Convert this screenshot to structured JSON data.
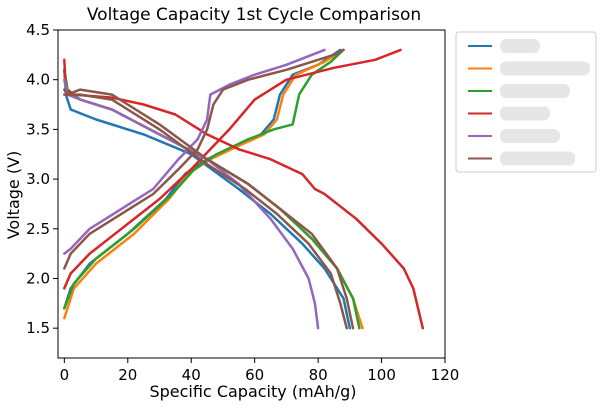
{
  "chart_data": {
    "type": "line",
    "title": "Voltage Capacity 1st Cycle Comparison",
    "xlabel": "Specific Capacity (mAh/g)",
    "ylabel": "Voltage (V)",
    "xlim": [
      -2,
      120
    ],
    "ylim": [
      1.2,
      4.5
    ],
    "xticks": [
      "0",
      "20",
      "40",
      "60",
      "80",
      "100",
      "120"
    ],
    "yticks": [
      "1.5",
      "2.0",
      "2.5",
      "3.0",
      "3.5",
      "4.0",
      "4.5"
    ],
    "grid": false,
    "legend_position": "outside-right",
    "series": [
      {
        "color": "#1f77b4",
        "charge": [
          [
            0,
            1.7
          ],
          [
            2,
            1.9
          ],
          [
            8,
            2.15
          ],
          [
            20,
            2.45
          ],
          [
            32,
            2.8
          ],
          [
            38,
            3.05
          ],
          [
            45,
            3.2
          ],
          [
            55,
            3.35
          ],
          [
            62,
            3.45
          ],
          [
            66,
            3.6
          ],
          [
            68,
            3.85
          ],
          [
            72,
            4.05
          ],
          [
            80,
            4.15
          ],
          [
            87,
            4.3
          ]
        ],
        "discharge": [
          [
            0,
            4.1
          ],
          [
            0.5,
            3.85
          ],
          [
            2,
            3.7
          ],
          [
            10,
            3.6
          ],
          [
            25,
            3.45
          ],
          [
            40,
            3.25
          ],
          [
            55,
            2.9
          ],
          [
            65,
            2.65
          ],
          [
            75,
            2.35
          ],
          [
            82,
            2.1
          ],
          [
            88,
            1.8
          ],
          [
            90,
            1.5
          ]
        ]
      },
      {
        "color": "#ff7f0e",
        "charge": [
          [
            0,
            1.6
          ],
          [
            3,
            1.9
          ],
          [
            10,
            2.15
          ],
          [
            22,
            2.45
          ],
          [
            33,
            2.8
          ],
          [
            39,
            3.05
          ],
          [
            46,
            3.2
          ],
          [
            56,
            3.35
          ],
          [
            63,
            3.45
          ],
          [
            67,
            3.6
          ],
          [
            69,
            3.85
          ],
          [
            73,
            4.05
          ],
          [
            82,
            4.18
          ],
          [
            88,
            4.3
          ]
        ],
        "discharge": [
          [
            0,
            4.1
          ],
          [
            1,
            3.9
          ],
          [
            5,
            3.8
          ],
          [
            15,
            3.7
          ],
          [
            30,
            3.45
          ],
          [
            45,
            3.2
          ],
          [
            58,
            2.95
          ],
          [
            68,
            2.7
          ],
          [
            78,
            2.4
          ],
          [
            86,
            2.1
          ],
          [
            91,
            1.8
          ],
          [
            94,
            1.5
          ]
        ]
      },
      {
        "color": "#2ca02c",
        "charge": [
          [
            0,
            1.7
          ],
          [
            3,
            1.95
          ],
          [
            10,
            2.2
          ],
          [
            22,
            2.5
          ],
          [
            34,
            2.85
          ],
          [
            41,
            3.1
          ],
          [
            48,
            3.25
          ],
          [
            58,
            3.4
          ],
          [
            66,
            3.5
          ],
          [
            72,
            3.55
          ],
          [
            74,
            3.85
          ],
          [
            78,
            4.05
          ],
          [
            84,
            4.18
          ],
          [
            88,
            4.3
          ]
        ],
        "discharge": [
          [
            0,
            4.1
          ],
          [
            1,
            3.9
          ],
          [
            5,
            3.8
          ],
          [
            15,
            3.7
          ],
          [
            30,
            3.45
          ],
          [
            45,
            3.2
          ],
          [
            58,
            2.95
          ],
          [
            68,
            2.7
          ],
          [
            78,
            2.4
          ],
          [
            86,
            2.1
          ],
          [
            91,
            1.8
          ],
          [
            93,
            1.5
          ]
        ]
      },
      {
        "color": "#d62728",
        "charge": [
          [
            0,
            1.9
          ],
          [
            2,
            2.05
          ],
          [
            8,
            2.25
          ],
          [
            18,
            2.5
          ],
          [
            30,
            2.8
          ],
          [
            40,
            3.1
          ],
          [
            46,
            3.3
          ],
          [
            52,
            3.5
          ],
          [
            60,
            3.8
          ],
          [
            70,
            4.0
          ],
          [
            85,
            4.12
          ],
          [
            98,
            4.2
          ],
          [
            106,
            4.3
          ]
        ],
        "discharge": [
          [
            0,
            4.2
          ],
          [
            0.5,
            3.9
          ],
          [
            3,
            3.85
          ],
          [
            15,
            3.82
          ],
          [
            25,
            3.75
          ],
          [
            35,
            3.65
          ],
          [
            45,
            3.45
          ],
          [
            55,
            3.3
          ],
          [
            65,
            3.2
          ],
          [
            75,
            3.05
          ],
          [
            79,
            2.9
          ],
          [
            82,
            2.85
          ],
          [
            92,
            2.6
          ],
          [
            100,
            2.35
          ],
          [
            107,
            2.1
          ],
          [
            110,
            1.9
          ],
          [
            113,
            1.5
          ]
        ]
      },
      {
        "color": "#9467bd",
        "charge": [
          [
            0,
            2.25
          ],
          [
            2,
            2.3
          ],
          [
            8,
            2.5
          ],
          [
            18,
            2.7
          ],
          [
            28,
            2.9
          ],
          [
            36,
            3.2
          ],
          [
            42,
            3.4
          ],
          [
            45,
            3.6
          ],
          [
            46,
            3.85
          ],
          [
            52,
            3.95
          ],
          [
            60,
            4.05
          ],
          [
            70,
            4.15
          ],
          [
            82,
            4.3
          ]
        ],
        "discharge": [
          [
            0,
            4.0
          ],
          [
            1,
            3.85
          ],
          [
            5,
            3.8
          ],
          [
            15,
            3.7
          ],
          [
            30,
            3.45
          ],
          [
            45,
            3.2
          ],
          [
            55,
            2.95
          ],
          [
            65,
            2.6
          ],
          [
            72,
            2.3
          ],
          [
            77,
            2.0
          ],
          [
            79,
            1.75
          ],
          [
            80,
            1.5
          ]
        ]
      },
      {
        "color": "#8c564b",
        "charge": [
          [
            0,
            2.1
          ],
          [
            2,
            2.25
          ],
          [
            8,
            2.45
          ],
          [
            18,
            2.65
          ],
          [
            28,
            2.85
          ],
          [
            36,
            3.1
          ],
          [
            42,
            3.3
          ],
          [
            45,
            3.5
          ],
          [
            47,
            3.75
          ],
          [
            50,
            3.9
          ],
          [
            58,
            4.0
          ],
          [
            70,
            4.1
          ],
          [
            85,
            4.25
          ],
          [
            88,
            4.3
          ]
        ],
        "discharge": [
          [
            0,
            3.9
          ],
          [
            1,
            3.85
          ],
          [
            5,
            3.9
          ],
          [
            15,
            3.85
          ],
          [
            30,
            3.55
          ],
          [
            45,
            3.2
          ],
          [
            58,
            2.95
          ],
          [
            68,
            2.7
          ],
          [
            78,
            2.45
          ],
          [
            86,
            2.1
          ],
          [
            89,
            1.8
          ],
          [
            91,
            1.5
          ]
        ],
        "discharge2": [
          [
            0,
            3.85
          ],
          [
            5,
            3.85
          ],
          [
            15,
            3.8
          ],
          [
            30,
            3.5
          ],
          [
            45,
            3.15
          ],
          [
            57,
            2.9
          ],
          [
            67,
            2.65
          ],
          [
            77,
            2.35
          ],
          [
            84,
            2.05
          ],
          [
            87,
            1.75
          ],
          [
            89,
            1.5
          ]
        ]
      }
    ]
  }
}
